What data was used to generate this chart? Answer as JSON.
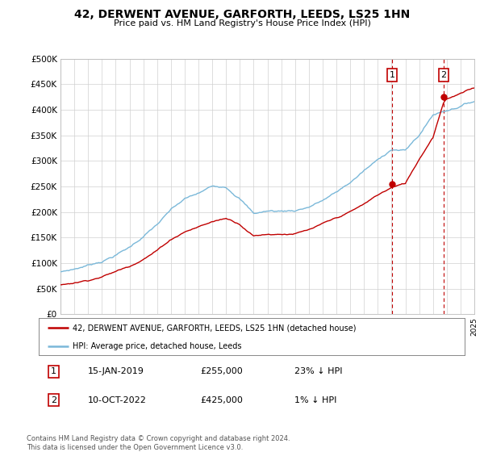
{
  "title": "42, DERWENT AVENUE, GARFORTH, LEEDS, LS25 1HN",
  "subtitle": "Price paid vs. HM Land Registry's House Price Index (HPI)",
  "ylim": [
    0,
    500000
  ],
  "yticks": [
    0,
    50000,
    100000,
    150000,
    200000,
    250000,
    300000,
    350000,
    400000,
    450000,
    500000
  ],
  "ytick_labels": [
    "£0",
    "£50K",
    "£100K",
    "£150K",
    "£200K",
    "£250K",
    "£300K",
    "£350K",
    "£400K",
    "£450K",
    "£500K"
  ],
  "sale1_date": 2019.04,
  "sale1_price": 255000,
  "sale2_date": 2022.78,
  "sale2_price": 425000,
  "hpi_color": "#7ab8d9",
  "sale_color": "#c00000",
  "vline_color": "#c00000",
  "plot_bg": "#ffffff",
  "legend_line1": "42, DERWENT AVENUE, GARFORTH, LEEDS, LS25 1HN (detached house)",
  "legend_line2": "HPI: Average price, detached house, Leeds",
  "footnote": "Contains HM Land Registry data © Crown copyright and database right 2024.\nThis data is licensed under the Open Government Licence v3.0.",
  "xstart": 1995,
  "xend": 2025,
  "hpi_knots_x": [
    1995,
    1996,
    1997,
    1998,
    1999,
    2000,
    2001,
    2002,
    2003,
    2004,
    2005,
    2006,
    2007,
    2008,
    2009,
    2010,
    2011,
    2012,
    2013,
    2014,
    2015,
    2016,
    2017,
    2018,
    2019,
    2020,
    2021,
    2022,
    2023,
    2024,
    2025
  ],
  "hpi_knots_y": [
    82000,
    88000,
    96000,
    105000,
    118000,
    133000,
    155000,
    178000,
    205000,
    225000,
    235000,
    248000,
    250000,
    230000,
    200000,
    205000,
    205000,
    207000,
    215000,
    228000,
    243000,
    262000,
    285000,
    305000,
    328000,
    325000,
    355000,
    395000,
    405000,
    415000,
    425000
  ],
  "sale_knots_x": [
    1995,
    1996,
    1997,
    1998,
    1999,
    2000,
    2001,
    2002,
    2003,
    2004,
    2005,
    2006,
    2007,
    2008,
    2009,
    2010,
    2011,
    2012,
    2013,
    2014,
    2015,
    2016,
    2017,
    2018,
    2019.04,
    2019.5,
    2020,
    2021,
    2022.0,
    2022.78,
    2023,
    2024,
    2025
  ],
  "sale_knots_y": [
    57000,
    62000,
    68000,
    76000,
    86000,
    97000,
    113000,
    130000,
    152000,
    168000,
    178000,
    188000,
    195000,
    185000,
    163000,
    167000,
    168000,
    170000,
    176000,
    186000,
    196000,
    208000,
    222000,
    240000,
    255000,
    258000,
    262000,
    310000,
    355000,
    425000,
    432000,
    442000,
    452000
  ]
}
